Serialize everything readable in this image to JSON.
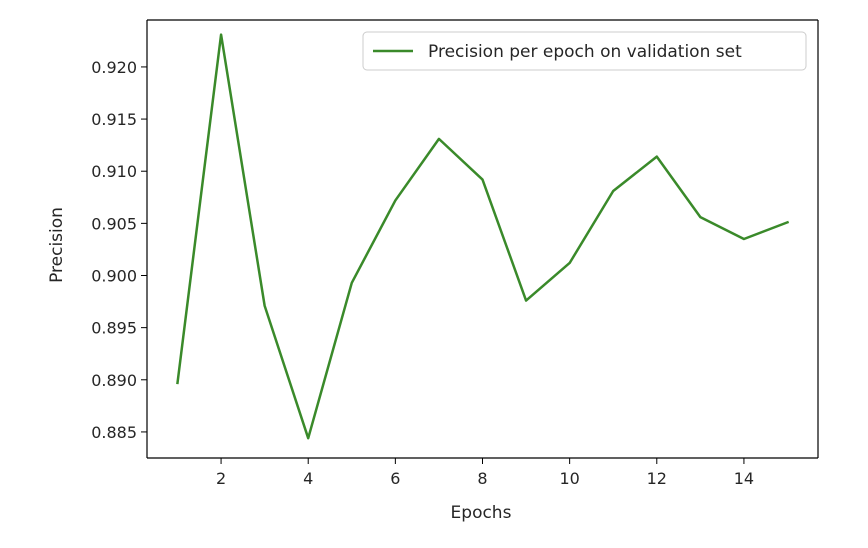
{
  "chart_data": {
    "type": "line",
    "title": "",
    "xlabel": "Epochs",
    "ylabel": "Precision",
    "xlim": [
      0.3,
      15.7
    ],
    "ylim": [
      0.8825,
      0.9245
    ],
    "x_ticks": [
      2,
      4,
      6,
      8,
      10,
      12,
      14
    ],
    "x_tick_labels": [
      "2",
      "4",
      "6",
      "8",
      "10",
      "12",
      "14"
    ],
    "y_ticks": [
      0.885,
      0.89,
      0.895,
      0.9,
      0.905,
      0.91,
      0.915,
      0.92
    ],
    "y_tick_labels": [
      "0.885",
      "0.890",
      "0.895",
      "0.900",
      "0.905",
      "0.910",
      "0.915",
      "0.920"
    ],
    "grid": false,
    "legend_position": "top-right",
    "series": [
      {
        "name": "Precision per epoch on validation set",
        "color": "#3a8a2a",
        "x": [
          1,
          2,
          3,
          4,
          5,
          6,
          7,
          8,
          9,
          10,
          11,
          12,
          13,
          14,
          15
        ],
        "y": [
          0.8897,
          0.9231,
          0.8971,
          0.8844,
          0.8993,
          0.9072,
          0.9131,
          0.9092,
          0.8976,
          0.9012,
          0.9081,
          0.9114,
          0.9056,
          0.9035,
          0.9051
        ]
      }
    ]
  }
}
